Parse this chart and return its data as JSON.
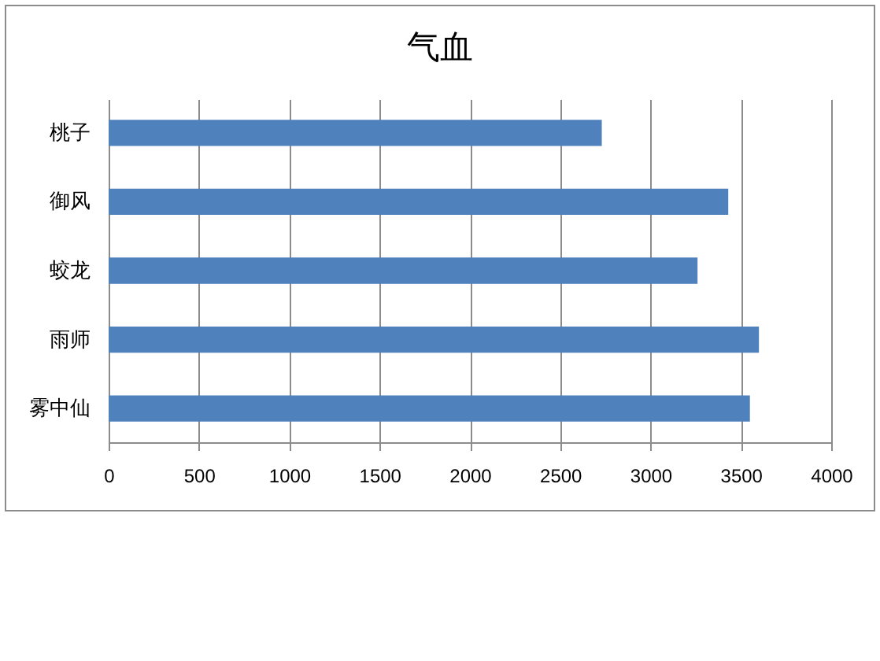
{
  "chart_data": {
    "type": "bar",
    "title": "气血",
    "orientation": "horizontal",
    "categories": [
      "桃子",
      "御风",
      "蛟龙",
      "雨师",
      "雾中仙"
    ],
    "values": [
      2730,
      3430,
      3260,
      3600,
      3550
    ],
    "color": "#4f81bd",
    "xlim": [
      0,
      4000
    ],
    "xticks": [
      0,
      500,
      1000,
      1500,
      2000,
      2500,
      3000,
      3500,
      4000
    ],
    "grid": "x"
  }
}
